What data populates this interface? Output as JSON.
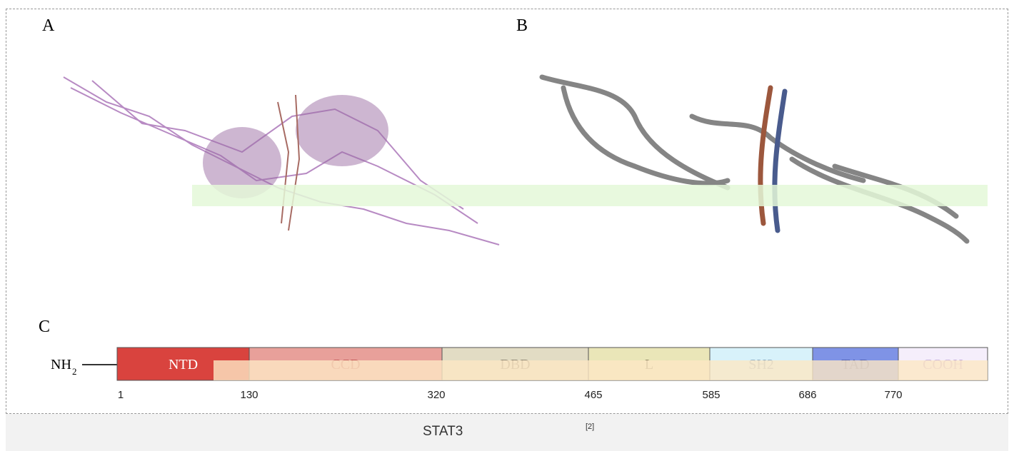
{
  "figure": {
    "panels": [
      "A",
      "B",
      "C"
    ],
    "domain_bar": {
      "start_label": "NH",
      "start_subscript": "2",
      "domains": [
        "NTD",
        "CCD",
        "DBD",
        "L",
        "SH2",
        "TAD",
        "COOH"
      ],
      "positions": [
        "1",
        "130",
        "320",
        "465",
        "585",
        "686",
        "770"
      ]
    },
    "caption": {
      "text": "STAT3",
      "reference": "[2]"
    }
  }
}
